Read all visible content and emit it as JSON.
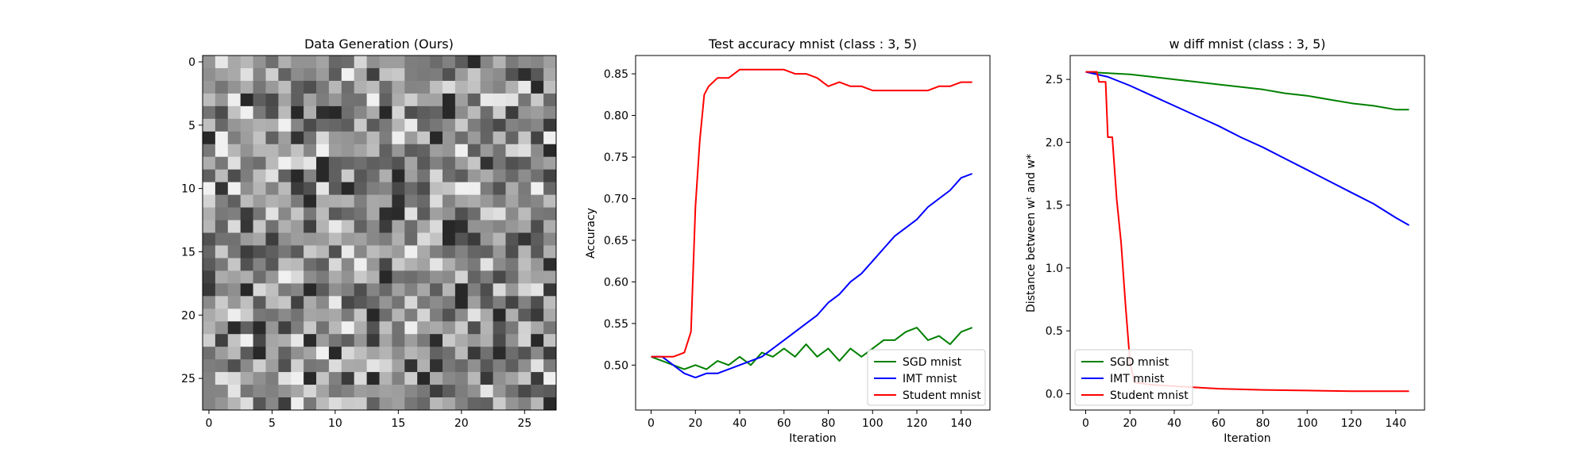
{
  "chart_data": [
    {
      "type": "heatmap",
      "title": "Data Generation (Ours)",
      "colormap": "grayscale",
      "rows": 28,
      "cols": 28,
      "xlim": [
        -0.5,
        27.5
      ],
      "ylim": [
        27.5,
        -0.5
      ],
      "xticks": [
        0,
        5,
        10,
        15,
        20,
        25
      ],
      "yticks": [
        0,
        5,
        10,
        15,
        20,
        25
      ]
    },
    {
      "type": "line",
      "title": "Test accuracy mnist (class : 3, 5)",
      "xlabel": "Iteration",
      "ylabel": "Accuracy",
      "xlim": [
        -7,
        153
      ],
      "ylim": [
        0.446,
        0.872
      ],
      "xticks": [
        0,
        20,
        40,
        60,
        80,
        100,
        120,
        140
      ],
      "yticks": [
        0.5,
        0.55,
        0.6,
        0.65,
        0.7,
        0.75,
        0.8,
        0.85
      ],
      "grid": false,
      "legend_position": "lower-right",
      "series": [
        {
          "name": "SGD mnist",
          "color": "#008000",
          "points": [
            [
              0,
              0.51
            ],
            [
              5,
              0.505
            ],
            [
              10,
              0.5
            ],
            [
              15,
              0.495
            ],
            [
              20,
              0.5
            ],
            [
              25,
              0.495
            ],
            [
              30,
              0.505
            ],
            [
              35,
              0.5
            ],
            [
              40,
              0.51
            ],
            [
              45,
              0.5
            ],
            [
              50,
              0.515
            ],
            [
              55,
              0.51
            ],
            [
              60,
              0.52
            ],
            [
              65,
              0.51
            ],
            [
              70,
              0.525
            ],
            [
              75,
              0.51
            ],
            [
              80,
              0.52
            ],
            [
              85,
              0.505
            ],
            [
              90,
              0.52
            ],
            [
              95,
              0.51
            ],
            [
              100,
              0.52
            ],
            [
              105,
              0.53
            ],
            [
              110,
              0.53
            ],
            [
              115,
              0.54
            ],
            [
              120,
              0.545
            ],
            [
              125,
              0.53
            ],
            [
              130,
              0.535
            ],
            [
              135,
              0.525
            ],
            [
              140,
              0.54
            ],
            [
              145,
              0.545
            ]
          ]
        },
        {
          "name": "IMT mnist",
          "color": "#0000ff",
          "points": [
            [
              0,
              0.51
            ],
            [
              5,
              0.51
            ],
            [
              10,
              0.5
            ],
            [
              15,
              0.49
            ],
            [
              20,
              0.485
            ],
            [
              25,
              0.49
            ],
            [
              30,
              0.49
            ],
            [
              35,
              0.495
            ],
            [
              40,
              0.5
            ],
            [
              45,
              0.505
            ],
            [
              50,
              0.51
            ],
            [
              55,
              0.52
            ],
            [
              60,
              0.53
            ],
            [
              65,
              0.54
            ],
            [
              70,
              0.55
            ],
            [
              75,
              0.56
            ],
            [
              80,
              0.575
            ],
            [
              85,
              0.585
            ],
            [
              90,
              0.6
            ],
            [
              95,
              0.61
            ],
            [
              100,
              0.625
            ],
            [
              105,
              0.64
            ],
            [
              110,
              0.655
            ],
            [
              115,
              0.665
            ],
            [
              120,
              0.675
            ],
            [
              125,
              0.69
            ],
            [
              130,
              0.7
            ],
            [
              135,
              0.71
            ],
            [
              140,
              0.725
            ],
            [
              145,
              0.73
            ]
          ]
        },
        {
          "name": "Student mnist",
          "color": "#ff0000",
          "points": [
            [
              0,
              0.51
            ],
            [
              5,
              0.51
            ],
            [
              10,
              0.51
            ],
            [
              15,
              0.515
            ],
            [
              18,
              0.54
            ],
            [
              20,
              0.69
            ],
            [
              22,
              0.77
            ],
            [
              24,
              0.825
            ],
            [
              26,
              0.835
            ],
            [
              30,
              0.845
            ],
            [
              35,
              0.845
            ],
            [
              40,
              0.855
            ],
            [
              45,
              0.855
            ],
            [
              50,
              0.855
            ],
            [
              55,
              0.855
            ],
            [
              60,
              0.855
            ],
            [
              65,
              0.85
            ],
            [
              70,
              0.85
            ],
            [
              75,
              0.845
            ],
            [
              80,
              0.835
            ],
            [
              85,
              0.84
            ],
            [
              90,
              0.835
            ],
            [
              95,
              0.835
            ],
            [
              100,
              0.83
            ],
            [
              105,
              0.83
            ],
            [
              110,
              0.83
            ],
            [
              115,
              0.83
            ],
            [
              120,
              0.83
            ],
            [
              125,
              0.83
            ],
            [
              130,
              0.835
            ],
            [
              135,
              0.835
            ],
            [
              140,
              0.84
            ],
            [
              145,
              0.84
            ]
          ]
        }
      ]
    },
    {
      "type": "line",
      "title": "w diff mnist (class : 3, 5)",
      "xlabel": "Iteration",
      "ylabel": "Distance between wᵗ and w*",
      "xlim": [
        -7,
        153
      ],
      "ylim": [
        -0.13,
        2.69
      ],
      "xticks": [
        0,
        20,
        40,
        60,
        80,
        100,
        120,
        140
      ],
      "yticks": [
        0.0,
        0.5,
        1.0,
        1.5,
        2.0,
        2.5
      ],
      "grid": false,
      "legend_position": "lower-left",
      "series": [
        {
          "name": "SGD mnist",
          "color": "#008000",
          "points": [
            [
              0,
              2.56
            ],
            [
              10,
              2.55
            ],
            [
              20,
              2.54
            ],
            [
              30,
              2.52
            ],
            [
              40,
              2.5
            ],
            [
              50,
              2.48
            ],
            [
              60,
              2.46
            ],
            [
              70,
              2.44
            ],
            [
              80,
              2.42
            ],
            [
              90,
              2.39
            ],
            [
              100,
              2.37
            ],
            [
              110,
              2.34
            ],
            [
              120,
              2.31
            ],
            [
              130,
              2.29
            ],
            [
              140,
              2.26
            ],
            [
              146,
              2.26
            ]
          ]
        },
        {
          "name": "IMT mnist",
          "color": "#0000ff",
          "points": [
            [
              0,
              2.56
            ],
            [
              10,
              2.52
            ],
            [
              20,
              2.45
            ],
            [
              30,
              2.37
            ],
            [
              40,
              2.29
            ],
            [
              50,
              2.21
            ],
            [
              60,
              2.13
            ],
            [
              70,
              2.04
            ],
            [
              80,
              1.96
            ],
            [
              90,
              1.87
            ],
            [
              100,
              1.78
            ],
            [
              110,
              1.69
            ],
            [
              120,
              1.6
            ],
            [
              130,
              1.51
            ],
            [
              140,
              1.4
            ],
            [
              146,
              1.34
            ]
          ]
        },
        {
          "name": "Student mnist",
          "color": "#ff0000",
          "points": [
            [
              0,
              2.56
            ],
            [
              5,
              2.56
            ],
            [
              6,
              2.48
            ],
            [
              9,
              2.48
            ],
            [
              10,
              2.04
            ],
            [
              12,
              2.04
            ],
            [
              14,
              1.55
            ],
            [
              16,
              1.2
            ],
            [
              18,
              0.7
            ],
            [
              20,
              0.25
            ],
            [
              22,
              0.09
            ],
            [
              30,
              0.07
            ],
            [
              40,
              0.06
            ],
            [
              60,
              0.04
            ],
            [
              80,
              0.03
            ],
            [
              100,
              0.025
            ],
            [
              120,
              0.02
            ],
            [
              146,
              0.02
            ]
          ]
        }
      ]
    }
  ]
}
